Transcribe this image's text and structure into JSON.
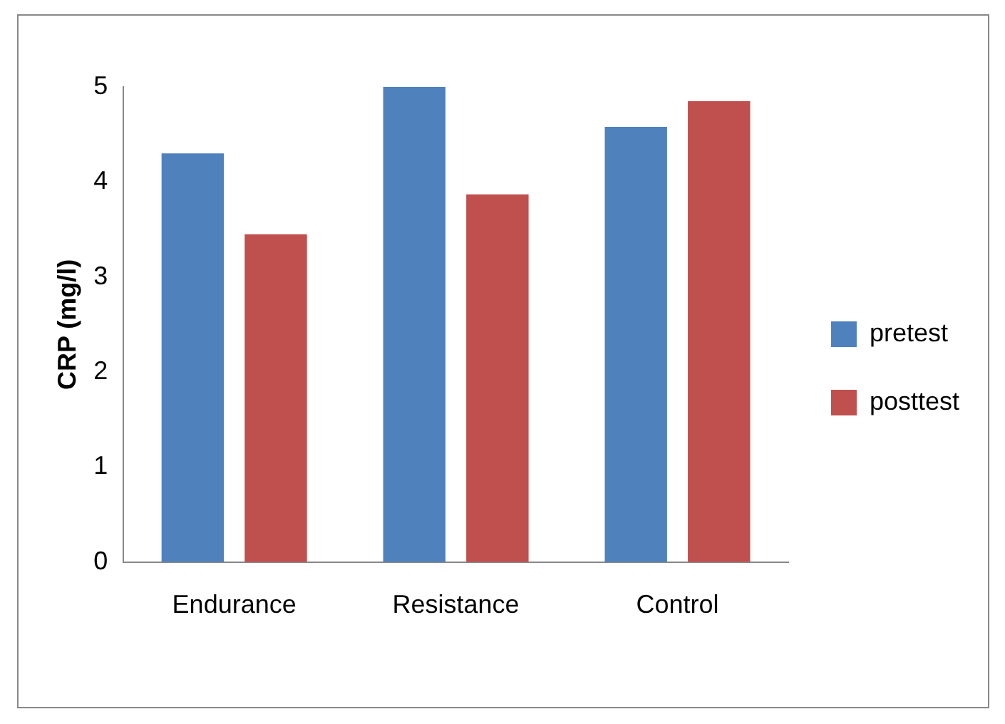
{
  "chart_data": {
    "type": "bar",
    "ylabel": "CRP (mg/l)",
    "categories": [
      "Endurance",
      "Resistance",
      "Control"
    ],
    "series": [
      {
        "name": "pretest",
        "color": "#4f81bd",
        "values": [
          4.3,
          5.0,
          4.58
        ]
      },
      {
        "name": "posttest",
        "color": "#c0504d",
        "values": [
          3.45,
          3.87,
          4.85
        ]
      }
    ],
    "ylim": [
      0,
      5
    ],
    "yticks": [
      0,
      1,
      2,
      3,
      4,
      5
    ],
    "grid": false,
    "legend": "right"
  }
}
